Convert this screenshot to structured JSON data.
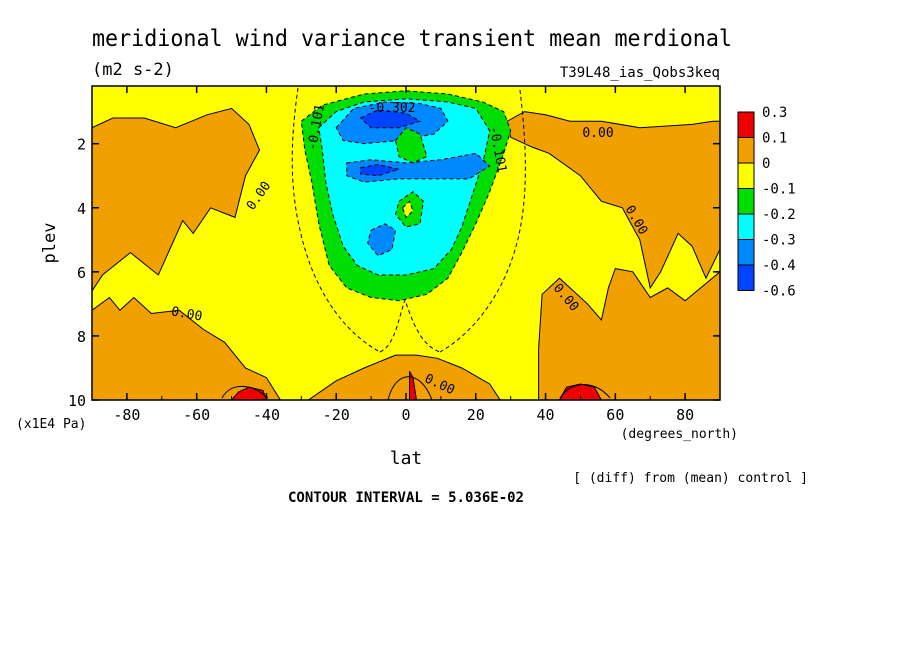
{
  "title": "meridional wind variance transient mean merdional",
  "units": "(m2 s-2)",
  "run_id": "T39L48_ias_Qobs3keq",
  "footnote": "[ (diff) from (mean) control ]",
  "contour_interval": "CONTOUR INTERVAL = 5.036E-02",
  "chart_data": {
    "type": "heatmap",
    "xlabel": "lat",
    "xunits": "(degrees_north)",
    "ylabel": "plev",
    "yunits": "(x1E4 Pa)",
    "xlim": [
      -90,
      90
    ],
    "ylim": [
      10,
      0.2
    ],
    "x_ticks": [
      -80,
      -60,
      -40,
      -20,
      0,
      20,
      40,
      60,
      80
    ],
    "x_tick_labels": [
      "-80",
      "-60",
      "-40",
      "-20",
      "0",
      "20",
      "40",
      "60",
      "80"
    ],
    "y_ticks": [
      2,
      4,
      6,
      8,
      10
    ],
    "y_tick_labels": [
      "2",
      "4",
      "6",
      "8",
      "10"
    ],
    "contour_labels": [
      "0.00",
      "0.00",
      "0.00",
      "0.00",
      "0.00",
      "0.00",
      "-0.101",
      "-0.101",
      "-0.302"
    ],
    "colorbar": {
      "labels": [
        "0.3",
        "0.1",
        "0",
        "-0.1",
        "-0.2",
        "-0.3",
        "-0.4",
        "-0.6"
      ],
      "colors": [
        "#ee0000",
        "#f0a000",
        "#ffff00",
        "#00dd00",
        "#00ffff",
        "#0088ff",
        "#0044ff"
      ]
    },
    "regions": [
      {
        "level": "0.1 to 0.3",
        "color": "#f0a000",
        "description": "orange",
        "shapes": [
          [
            [
              -90,
              1.5
            ],
            [
              -84,
              1.2
            ],
            [
              -75,
              1.2
            ],
            [
              -66,
              1.5
            ],
            [
              -57,
              1.1
            ],
            [
              -50,
              0.9
            ],
            [
              -45,
              1.4
            ],
            [
              -42,
              2.2
            ],
            [
              -46,
              3.0
            ],
            [
              -49,
              4.3
            ],
            [
              -56,
              4.0
            ],
            [
              -61,
              4.8
            ],
            [
              -64,
              4.4
            ],
            [
              -71,
              6.1
            ],
            [
              -79,
              5.4
            ],
            [
              -87,
              6.1
            ],
            [
              -90,
              6.6
            ]
          ],
          [
            [
              -90,
              7.2
            ],
            [
              -85,
              6.8
            ],
            [
              -82,
              7.2
            ],
            [
              -78,
              6.8
            ],
            [
              -73,
              7.3
            ],
            [
              -65,
              7.2
            ],
            [
              -58,
              7.8
            ],
            [
              -52,
              8.2
            ],
            [
              -46,
              9.0
            ],
            [
              -40,
              9.3
            ],
            [
              -36,
              10.0
            ],
            [
              -90,
              10.0
            ]
          ],
          [
            [
              -28,
              10.0
            ],
            [
              -20,
              9.4
            ],
            [
              -12,
              9.0
            ],
            [
              -3,
              8.6
            ],
            [
              3,
              8.6
            ],
            [
              9,
              8.7
            ],
            [
              16,
              9.0
            ],
            [
              24,
              9.5
            ],
            [
              27,
              10.0
            ]
          ],
          [
            [
              29,
              1.3
            ],
            [
              34,
              1.0
            ],
            [
              40,
              1.1
            ],
            [
              47,
              1.3
            ],
            [
              56,
              1.3
            ],
            [
              67,
              1.5
            ],
            [
              82,
              1.4
            ],
            [
              88,
              1.3
            ],
            [
              90,
              1.3
            ],
            [
              90,
              5.3
            ],
            [
              86,
              6.2
            ],
            [
              82,
              5.2
            ],
            [
              78,
              4.8
            ],
            [
              73,
              6.0
            ],
            [
              70,
              6.5
            ],
            [
              67,
              5.0
            ],
            [
              62,
              4.0
            ],
            [
              56,
              3.8
            ],
            [
              50,
              3.0
            ],
            [
              41,
              2.3
            ],
            [
              36,
              2.1
            ],
            [
              30,
              1.8
            ]
          ],
          [
            [
              38,
              10.0
            ],
            [
              38,
              8.4
            ],
            [
              39,
              6.7
            ],
            [
              44,
              6.2
            ],
            [
              49,
              6.7
            ],
            [
              52,
              7.0
            ],
            [
              56,
              7.5
            ],
            [
              58,
              6.5
            ],
            [
              60,
              5.9
            ],
            [
              65,
              6.0
            ],
            [
              70,
              6.8
            ],
            [
              75,
              6.5
            ],
            [
              80,
              6.9
            ],
            [
              90,
              6.0
            ],
            [
              90,
              10.0
            ]
          ]
        ]
      },
      {
        "level": "-0.2 to -0.1",
        "color": "#00dd00",
        "description": "green",
        "shapes": [
          [
            [
              -30,
              1.3
            ],
            [
              -24,
              0.8
            ],
            [
              -12,
              0.45
            ],
            [
              0,
              0.35
            ],
            [
              12,
              0.45
            ],
            [
              22,
              0.7
            ],
            [
              28,
              1.0
            ],
            [
              30,
              1.6
            ],
            [
              28,
              2.3
            ],
            [
              24,
              3.5
            ],
            [
              20,
              4.5
            ],
            [
              16,
              5.4
            ],
            [
              12,
              6.2
            ],
            [
              6,
              6.7
            ],
            [
              -2,
              6.9
            ],
            [
              -10,
              6.8
            ],
            [
              -17,
              6.5
            ],
            [
              -22,
              5.8
            ],
            [
              -25,
              4.5
            ],
            [
              -27,
              3.2
            ],
            [
              -29,
              2.2
            ]
          ]
        ]
      },
      {
        "level": "-0.3 to -0.2",
        "color": "#00ffff",
        "description": "cyan",
        "shapes": [
          [
            [
              -25,
              1.5
            ],
            [
              -20,
              1.0
            ],
            [
              -12,
              0.7
            ],
            [
              0,
              0.6
            ],
            [
              12,
              0.7
            ],
            [
              20,
              0.9
            ],
            [
              24,
              1.6
            ],
            [
              22,
              2.6
            ],
            [
              19,
              3.6
            ],
            [
              16,
              4.6
            ],
            [
              13,
              5.3
            ],
            [
              8,
              5.9
            ],
            [
              0,
              6.1
            ],
            [
              -8,
              6.1
            ],
            [
              -14,
              5.8
            ],
            [
              -18,
              5.2
            ],
            [
              -21,
              4.2
            ],
            [
              -23,
              3.2
            ],
            [
              -24,
              2.2
            ]
          ]
        ]
      },
      {
        "level": "-0.4 to -0.3",
        "color": "#0088ff",
        "description": "light blue",
        "shapes": [
          [
            [
              -20,
              1.5
            ],
            [
              -15,
              0.9
            ],
            [
              -6,
              0.7
            ],
            [
              4,
              0.75
            ],
            [
              10,
              0.9
            ],
            [
              12,
              1.3
            ],
            [
              8,
              1.7
            ],
            [
              -2,
              1.9
            ],
            [
              -12,
              2.0
            ],
            [
              -18,
              1.9
            ]
          ],
          [
            [
              -17,
              2.6
            ],
            [
              -10,
              2.5
            ],
            [
              0,
              2.6
            ],
            [
              10,
              2.5
            ],
            [
              20,
              2.3
            ],
            [
              24,
              2.7
            ],
            [
              18,
              3.1
            ],
            [
              8,
              3.1
            ],
            [
              -2,
              3.1
            ],
            [
              -12,
              3.2
            ],
            [
              -17,
              3.0
            ]
          ],
          [
            [
              -10,
              4.7
            ],
            [
              -6,
              4.5
            ],
            [
              -3,
              4.7
            ],
            [
              -4,
              5.3
            ],
            [
              -8,
              5.5
            ],
            [
              -11,
              5.1
            ]
          ]
        ]
      },
      {
        "level": "-0.6 to -0.4",
        "color": "#0044ff",
        "description": "deep blue",
        "shapes": [
          [
            [
              -13,
              1.2
            ],
            [
              -8,
              0.95
            ],
            [
              0,
              1.05
            ],
            [
              4,
              1.3
            ],
            [
              -2,
              1.5
            ],
            [
              -10,
              1.5
            ]
          ],
          [
            [
              -13,
              2.75
            ],
            [
              -8,
              2.65
            ],
            [
              -2,
              2.8
            ],
            [
              -8,
              3.0
            ],
            [
              -13,
              2.95
            ]
          ]
        ]
      },
      {
        "level": "-0.2 to -0.1",
        "color": "#00dd00",
        "description": "green islands",
        "shapes": [
          [
            [
              -3,
              1.9
            ],
            [
              0,
              1.5
            ],
            [
              4,
              1.7
            ],
            [
              6,
              2.4
            ],
            [
              2,
              2.6
            ],
            [
              -2,
              2.4
            ]
          ],
          [
            [
              -2,
              3.8
            ],
            [
              2,
              3.5
            ],
            [
              5,
              3.8
            ],
            [
              4,
              4.5
            ],
            [
              0,
              4.6
            ],
            [
              -3,
              4.2
            ]
          ]
        ]
      },
      {
        "level": "0 to -0.1",
        "color": "#ffff00",
        "description": "yellow hole",
        "shapes": [
          [
            [
              -1,
              4.0
            ],
            [
              1,
              3.8
            ],
            [
              2,
              4.1
            ],
            [
              0,
              4.3
            ]
          ]
        ]
      },
      {
        "level": "0.3+",
        "color": "#ee0000",
        "description": "red",
        "shapes": [
          [
            [
              -50,
              10.0
            ],
            [
              -48,
              9.75
            ],
            [
              -45,
              9.6
            ],
            [
              -41,
              9.7
            ],
            [
              -40,
              10.0
            ]
          ],
          [
            [
              44,
              10.0
            ],
            [
              46,
              9.6
            ],
            [
              50,
              9.5
            ],
            [
              54,
              9.6
            ],
            [
              56,
              10.0
            ]
          ],
          [
            [
              1,
              9.1
            ],
            [
              2,
              9.3
            ],
            [
              3,
              10.0
            ],
            [
              1,
              10.0
            ]
          ]
        ]
      }
    ]
  }
}
